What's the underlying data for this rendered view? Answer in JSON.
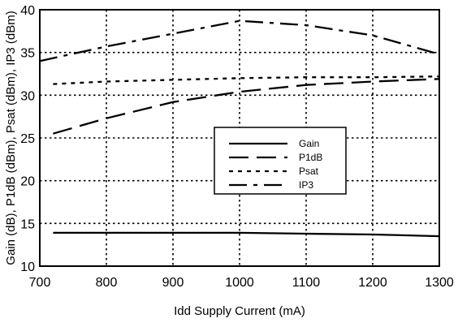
{
  "chart_data": {
    "type": "line",
    "xlabel": "Idd Supply Current (mA)",
    "ylabel": "Gain (dB), P1dB (dBm), Psat (dBm), IP3 (dBm)",
    "xlim": [
      700,
      1300
    ],
    "ylim": [
      10,
      40
    ],
    "x_ticks": [
      700,
      800,
      900,
      1000,
      1100,
      1200,
      1300
    ],
    "y_ticks": [
      10,
      15,
      20,
      25,
      30,
      35,
      40
    ],
    "grid": true,
    "grid_style": "dotted",
    "extra_gridlines_y": [
      15,
      35
    ],
    "legend_position": "center-right",
    "series": [
      {
        "name": "Gain",
        "style": "solid",
        "x": [
          720,
          800,
          900,
          1000,
          1100,
          1200,
          1300
        ],
        "y": [
          13.9,
          13.9,
          13.9,
          13.9,
          13.8,
          13.7,
          13.5
        ]
      },
      {
        "name": "P1dB",
        "style": "dashed",
        "x": [
          720,
          800,
          900,
          1000,
          1100,
          1200,
          1300
        ],
        "y": [
          25.5,
          27.3,
          29.2,
          30.4,
          31.2,
          31.6,
          31.9
        ]
      },
      {
        "name": "Psat",
        "style": "dotted",
        "x": [
          720,
          800,
          900,
          1000,
          1100,
          1200,
          1300
        ],
        "y": [
          31.3,
          31.6,
          31.8,
          32.0,
          32.1,
          32.1,
          32.2
        ]
      },
      {
        "name": "IP3",
        "style": "dashdot",
        "x": [
          700,
          800,
          900,
          1000,
          1100,
          1200,
          1300
        ],
        "y": [
          34.0,
          35.7,
          37.2,
          38.7,
          38.2,
          37.0,
          34.8
        ]
      }
    ]
  }
}
